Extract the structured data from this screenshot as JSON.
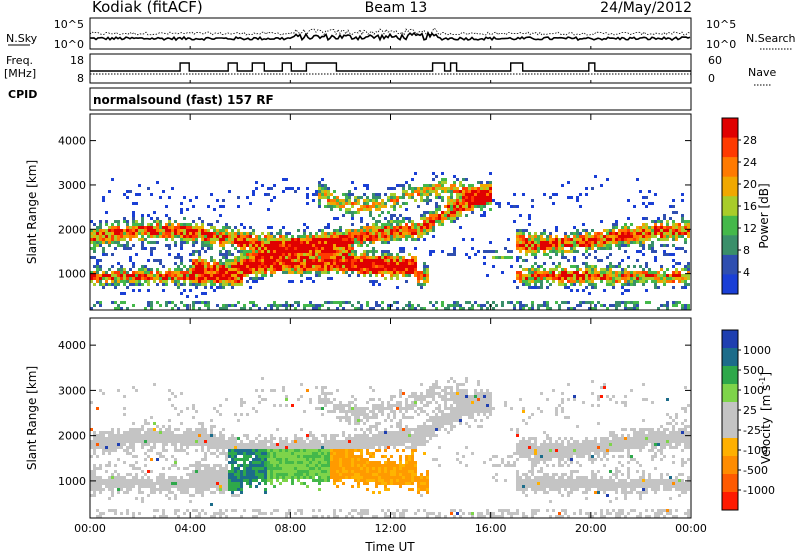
{
  "header": {
    "station": "Kodiak (fitACF)",
    "beam": "Beam 13",
    "date": "24/May/2012"
  },
  "left_labels": {
    "nsky": "N.Sky",
    "freq": "Freq.",
    "mhz": "[MHz]",
    "cpid": "CPID",
    "nsky_ticks": [
      "10^5",
      "10^0"
    ],
    "freq_ticks": [
      "18",
      "8"
    ]
  },
  "right_labels": {
    "nsearch": "N.Search",
    "nave": "Nave",
    "nsearch_ticks": [
      "10^5",
      "10^0"
    ],
    "nave_ticks": [
      "60",
      "0"
    ]
  },
  "cpid_text": "normalsound (fast) 157 RF",
  "colors": {
    "power_scale": [
      "#1a3fd6",
      "#2f4fb0",
      "#3a8f6a",
      "#44b84a",
      "#a8cc2a",
      "#f0a800",
      "#ff7a00",
      "#ff3a00",
      "#e00000"
    ],
    "velocity_scale": [
      "#ff1a00",
      "#ff5a00",
      "#ff8c00",
      "#ffb000",
      "#c4c4c4",
      "#c4c4c4",
      "#7ed44a",
      "#2ea84a",
      "#1c6c8a",
      "#1f3fb0"
    ]
  },
  "chart_data": [
    {
      "type": "heatmap",
      "panel": "power",
      "xlabel": "",
      "ylabel": "Slant Range [km]",
      "x_ticks": [
        "00:00",
        "04:00",
        "08:00",
        "12:00",
        "16:00",
        "20:00",
        "00:00"
      ],
      "y_ticks": [
        1000,
        2000,
        3000,
        4000
      ],
      "ylim": [
        180,
        4600
      ],
      "colorbar": {
        "label": "Power [dB]",
        "ticks": [
          4,
          8,
          12,
          16,
          20,
          24,
          28
        ],
        "range": [
          0,
          30
        ]
      },
      "grid": false
    },
    {
      "type": "heatmap",
      "panel": "velocity",
      "xlabel": "Time UT",
      "ylabel": "Slant Range [km]",
      "x_ticks": [
        "00:00",
        "04:00",
        "08:00",
        "12:00",
        "16:00",
        "20:00",
        "00:00"
      ],
      "y_ticks": [
        1000,
        2000,
        3000,
        4000
      ],
      "ylim": [
        180,
        4600
      ],
      "colorbar": {
        "label": "Velocity",
        "unit": "[m s",
        "unit_exp": "-1",
        "unit_close": "]",
        "ticks": [
          1000,
          500,
          100,
          25,
          -25,
          -100,
          -500,
          -1000
        ]
      },
      "grid": false
    }
  ]
}
